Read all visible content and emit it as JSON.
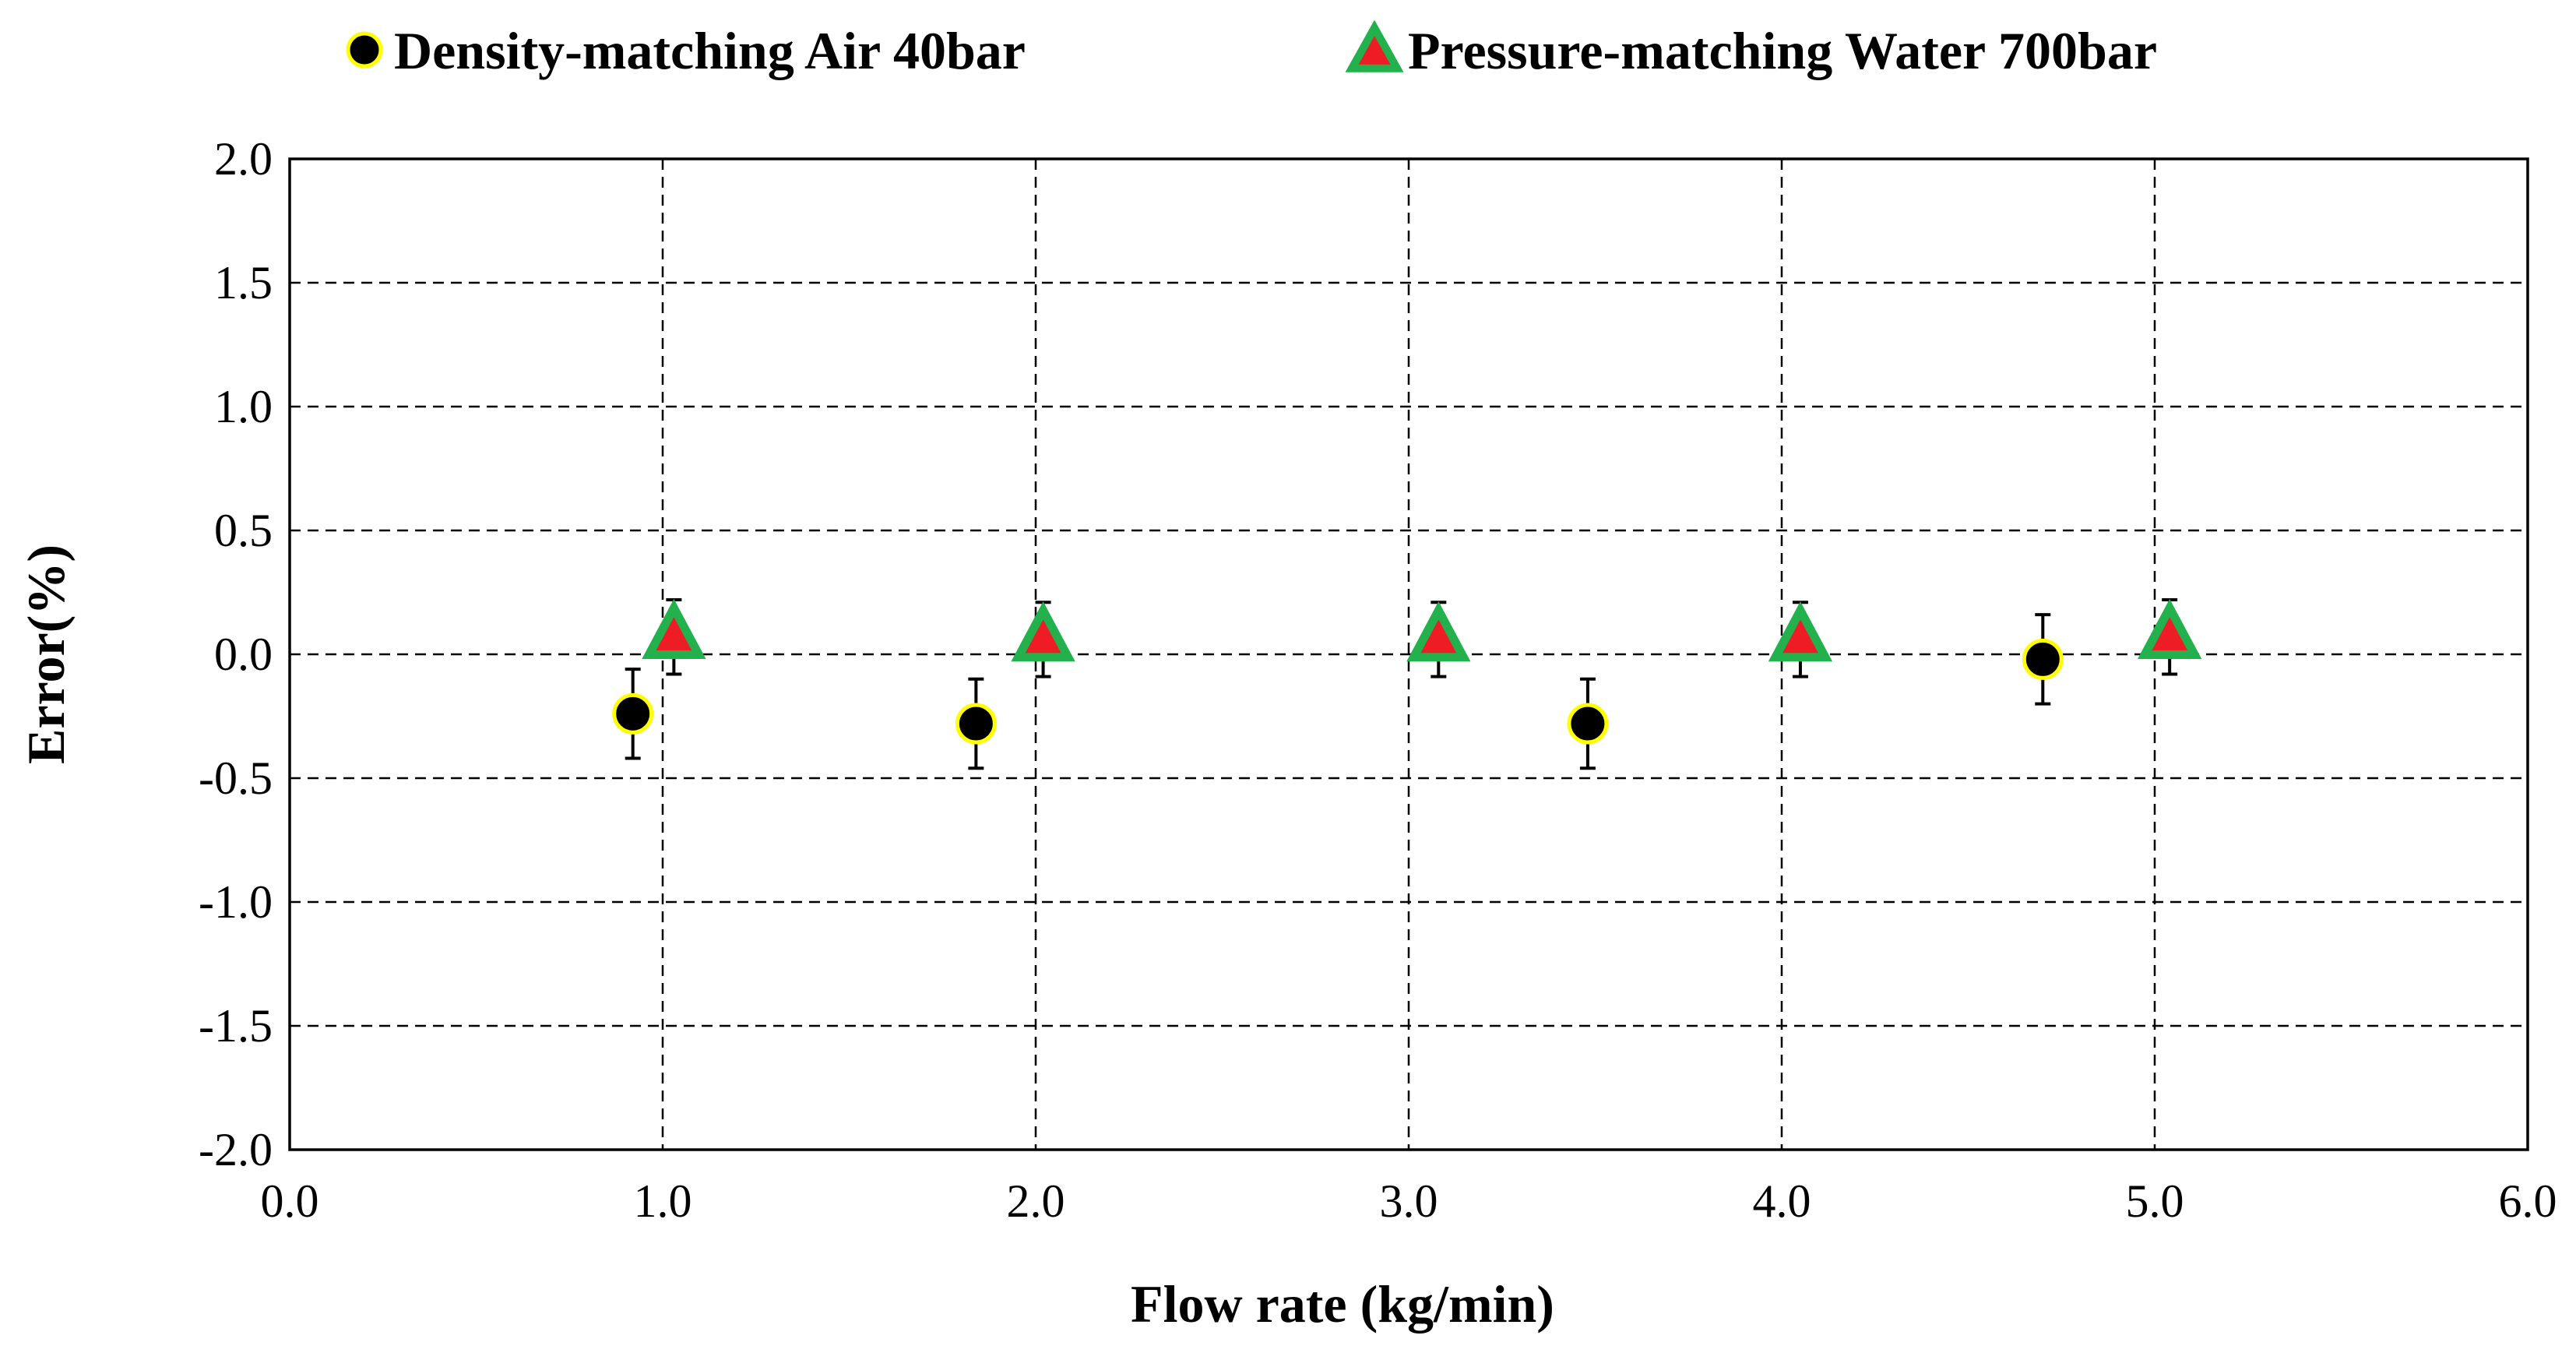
{
  "chart_data": {
    "type": "scatter",
    "title": "",
    "xlabel": "Flow rate (kg/min)",
    "ylabel": "Error(%)",
    "xlim": [
      0.0,
      6.0
    ],
    "ylim": [
      -2.0,
      2.0
    ],
    "x_ticks": [
      0.0,
      1.0,
      2.0,
      3.0,
      4.0,
      5.0,
      6.0
    ],
    "y_ticks": [
      2.0,
      1.5,
      1.0,
      0.5,
      0.0,
      -0.5,
      -1.0,
      -1.5,
      -2.0
    ],
    "x_tick_labels": [
      "0.0",
      "1.0",
      "2.0",
      "3.0",
      "4.0",
      "5.0",
      "6.0"
    ],
    "y_tick_labels": [
      "2.0",
      "1.5",
      "1.0",
      "0.5",
      "0.0",
      "-0.5",
      "-1.0",
      "-1.5",
      "-2.0"
    ],
    "grid": true,
    "legend_position": "top",
    "series": [
      {
        "name": "Density-matching Air 40bar",
        "marker": "circle",
        "fill_color": "#000000",
        "edge_color": "#ffff00",
        "x": [
          0.92,
          1.84,
          3.48,
          4.7
        ],
        "y": [
          -0.24,
          -0.28,
          -0.28,
          -0.02
        ],
        "error": [
          0.18,
          0.18,
          0.18,
          0.18
        ]
      },
      {
        "name": "Pressure-matching Water 700bar",
        "marker": "triangle",
        "fill_color": "#ee1c25",
        "edge_color": "#22b14c",
        "x": [
          1.03,
          2.02,
          3.08,
          4.05,
          5.04
        ],
        "y": [
          0.07,
          0.06,
          0.06,
          0.06,
          0.07
        ],
        "error": [
          0.15,
          0.15,
          0.15,
          0.15,
          0.15
        ]
      }
    ]
  }
}
